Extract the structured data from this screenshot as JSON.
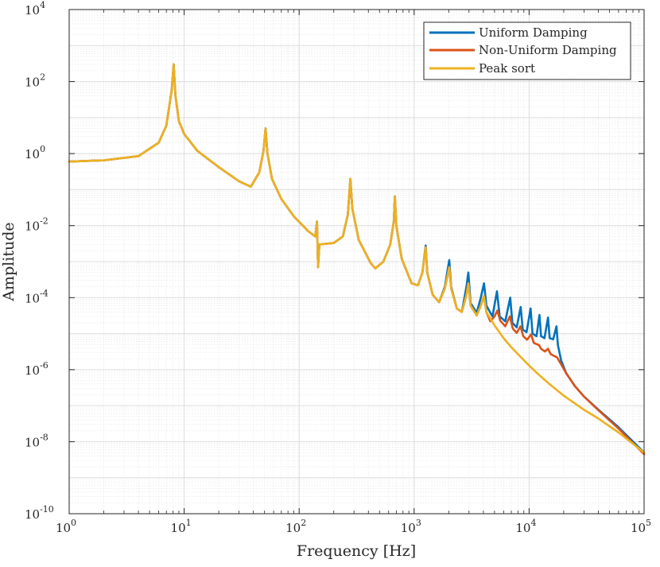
{
  "chart_data": {
    "type": "line",
    "xlabel": "Frequency [Hz]",
    "ylabel": "Amplitude",
    "xscale": "log",
    "yscale": "log",
    "xlim": [
      1,
      100000
    ],
    "ylim": [
      1e-10,
      10000
    ],
    "x_ticks": [
      {
        "base": "10",
        "exp": "0"
      },
      {
        "base": "10",
        "exp": "1"
      },
      {
        "base": "10",
        "exp": "2"
      },
      {
        "base": "10",
        "exp": "3"
      },
      {
        "base": "10",
        "exp": "4"
      },
      {
        "base": "10",
        "exp": "5"
      }
    ],
    "y_ticks": [
      {
        "base": "10",
        "exp": "-10"
      },
      {
        "base": "10",
        "exp": "-8"
      },
      {
        "base": "10",
        "exp": "-6"
      },
      {
        "base": "10",
        "exp": "-4"
      },
      {
        "base": "10",
        "exp": "-2"
      },
      {
        "base": "10",
        "exp": "0"
      },
      {
        "base": "10",
        "exp": "2"
      },
      {
        "base": "10",
        "exp": "4"
      }
    ],
    "grid": true,
    "minor_grid": true,
    "legend_position": "top-right",
    "series": [
      {
        "name": "Uniform Damping",
        "color": "#0072BD",
        "points": [
          [
            1,
            0.6
          ],
          [
            2,
            0.65
          ],
          [
            4,
            0.85
          ],
          [
            6,
            2.0
          ],
          [
            7,
            6
          ],
          [
            7.8,
            60
          ],
          [
            8.1,
            300
          ],
          [
            8.4,
            40
          ],
          [
            9,
            8
          ],
          [
            10,
            3.5
          ],
          [
            13,
            1.2
          ],
          [
            20,
            0.42
          ],
          [
            30,
            0.17
          ],
          [
            38,
            0.12
          ],
          [
            45,
            0.3
          ],
          [
            49,
            1.2
          ],
          [
            51,
            5
          ],
          [
            53,
            1.0
          ],
          [
            58,
            0.2
          ],
          [
            70,
            0.055
          ],
          [
            90,
            0.018
          ],
          [
            120,
            0.007
          ],
          [
            138,
            0.005
          ],
          [
            143,
            0.013
          ],
          [
            146,
            0.0007
          ],
          [
            150,
            0.003
          ],
          [
            200,
            0.0033
          ],
          [
            240,
            0.005
          ],
          [
            265,
            0.02
          ],
          [
            279,
            0.2
          ],
          [
            290,
            0.03
          ],
          [
            330,
            0.004
          ],
          [
            420,
            0.0009
          ],
          [
            460,
            0.00065
          ],
          [
            540,
            0.001
          ],
          [
            620,
            0.003
          ],
          [
            665,
            0.013
          ],
          [
            680,
            0.065
          ],
          [
            700,
            0.01
          ],
          [
            780,
            0.0012
          ],
          [
            950,
            0.00025
          ],
          [
            1080,
            0.00022
          ],
          [
            1180,
            0.0005
          ],
          [
            1260,
            0.0028
          ],
          [
            1300,
            0.0005
          ],
          [
            1450,
            0.00012
          ],
          [
            1650,
            7.5e-05
          ],
          [
            1850,
            0.0002
          ],
          [
            2020,
            0.0011
          ],
          [
            2100,
            0.0002
          ],
          [
            2350,
            5e-05
          ],
          [
            2600,
            4e-05
          ],
          [
            2850,
            0.0002
          ],
          [
            2960,
            0.0005
          ],
          [
            3100,
            7e-05
          ],
          [
            3500,
            3.8e-05
          ],
          [
            3800,
            0.0001
          ],
          [
            4050,
            0.00025
          ],
          [
            4250,
            6e-05
          ],
          [
            4800,
            3e-05
          ],
          [
            5250,
            0.00015
          ],
          [
            5550,
            3e-05
          ],
          [
            6200,
            2.2e-05
          ],
          [
            6850,
            0.0001
          ],
          [
            7150,
            2e-05
          ],
          [
            7800,
            1.5e-05
          ],
          [
            8450,
            5.5e-05
          ],
          [
            8800,
            1.3e-05
          ],
          [
            9500,
            1.1e-05
          ],
          [
            10300,
            5e-05
          ],
          [
            10700,
            1e-05
          ],
          [
            11600,
            8.5e-06
          ],
          [
            12300,
            3.3e-05
          ],
          [
            12700,
            8.5e-06
          ],
          [
            13600,
            7.5e-06
          ],
          [
            14600,
            2.8e-05
          ],
          [
            15100,
            7.5e-06
          ],
          [
            16200,
            7e-06
          ],
          [
            17300,
            1.6e-05
          ],
          [
            17800,
            4.8e-06
          ],
          [
            19000,
            1.8e-06
          ],
          [
            21000,
            8e-07
          ],
          [
            25000,
            3.5e-07
          ],
          [
            30000,
            1.8e-07
          ],
          [
            40000,
            7.8e-08
          ],
          [
            60000,
            2.5e-08
          ],
          [
            100000,
            5e-09
          ]
        ]
      },
      {
        "name": "Non-Uniform Damping",
        "color": "#D95319",
        "points": [
          [
            1,
            0.6
          ],
          [
            2,
            0.65
          ],
          [
            4,
            0.85
          ],
          [
            6,
            2.0
          ],
          [
            7,
            6
          ],
          [
            7.8,
            60
          ],
          [
            8.1,
            300
          ],
          [
            8.4,
            40
          ],
          [
            9,
            8
          ],
          [
            10,
            3.5
          ],
          [
            13,
            1.2
          ],
          [
            20,
            0.42
          ],
          [
            30,
            0.17
          ],
          [
            38,
            0.12
          ],
          [
            45,
            0.3
          ],
          [
            49,
            1.2
          ],
          [
            51,
            5
          ],
          [
            53,
            1.0
          ],
          [
            58,
            0.2
          ],
          [
            70,
            0.055
          ],
          [
            90,
            0.018
          ],
          [
            120,
            0.007
          ],
          [
            138,
            0.005
          ],
          [
            143,
            0.013
          ],
          [
            146,
            0.0007
          ],
          [
            150,
            0.003
          ],
          [
            200,
            0.0033
          ],
          [
            240,
            0.005
          ],
          [
            265,
            0.02
          ],
          [
            279,
            0.2
          ],
          [
            290,
            0.03
          ],
          [
            330,
            0.004
          ],
          [
            420,
            0.0009
          ],
          [
            460,
            0.00065
          ],
          [
            540,
            0.001
          ],
          [
            620,
            0.003
          ],
          [
            665,
            0.013
          ],
          [
            680,
            0.065
          ],
          [
            700,
            0.01
          ],
          [
            780,
            0.0012
          ],
          [
            950,
            0.00025
          ],
          [
            1080,
            0.00022
          ],
          [
            1180,
            0.0005
          ],
          [
            1260,
            0.0025
          ],
          [
            1300,
            0.0005
          ],
          [
            1450,
            0.00012
          ],
          [
            1650,
            7.5e-05
          ],
          [
            1850,
            0.00018
          ],
          [
            2020,
            0.0007
          ],
          [
            2100,
            0.00018
          ],
          [
            2350,
            5e-05
          ],
          [
            2600,
            4e-05
          ],
          [
            2850,
            0.00012
          ],
          [
            2960,
            0.00025
          ],
          [
            3100,
            6e-05
          ],
          [
            3500,
            3.2e-05
          ],
          [
            3800,
            6e-05
          ],
          [
            4050,
            0.00011
          ],
          [
            4250,
            4e-05
          ],
          [
            4600,
            2.2e-05
          ],
          [
            5000,
            3e-05
          ],
          [
            5300,
            4.4e-05
          ],
          [
            5600,
            2.3e-05
          ],
          [
            6200,
            1.6e-05
          ],
          [
            6800,
            3e-05
          ],
          [
            7200,
            1.4e-05
          ],
          [
            7800,
            1.05e-05
          ],
          [
            8400,
            1.6e-05
          ],
          [
            8900,
            8.5e-06
          ],
          [
            9600,
            6.8e-06
          ],
          [
            10400,
            9.5e-06
          ],
          [
            11000,
            5.5e-06
          ],
          [
            12200,
            4.8e-06
          ],
          [
            12700,
            3.8e-06
          ],
          [
            13700,
            3.2e-06
          ],
          [
            14600,
            3.8e-06
          ],
          [
            15400,
            2.7e-06
          ],
          [
            16500,
            2.4e-06
          ],
          [
            17500,
            2.2e-06
          ],
          [
            19000,
            1.4e-06
          ],
          [
            21000,
            8e-07
          ],
          [
            25000,
            3.5e-07
          ],
          [
            30000,
            1.8e-07
          ],
          [
            40000,
            7.5e-08
          ],
          [
            60000,
            2.3e-08
          ],
          [
            100000,
            4.5e-09
          ]
        ]
      },
      {
        "name": "Peak sort",
        "color": "#EDB120",
        "points": [
          [
            1,
            0.6
          ],
          [
            2,
            0.65
          ],
          [
            4,
            0.85
          ],
          [
            6,
            2.0
          ],
          [
            7,
            6
          ],
          [
            7.8,
            60
          ],
          [
            8.1,
            300
          ],
          [
            8.4,
            40
          ],
          [
            9,
            8
          ],
          [
            10,
            3.5
          ],
          [
            13,
            1.2
          ],
          [
            20,
            0.42
          ],
          [
            30,
            0.17
          ],
          [
            38,
            0.12
          ],
          [
            45,
            0.3
          ],
          [
            49,
            1.2
          ],
          [
            51,
            5
          ],
          [
            53,
            1.0
          ],
          [
            58,
            0.2
          ],
          [
            70,
            0.055
          ],
          [
            90,
            0.018
          ],
          [
            120,
            0.007
          ],
          [
            138,
            0.005
          ],
          [
            143,
            0.013
          ],
          [
            146,
            0.0007
          ],
          [
            150,
            0.003
          ],
          [
            200,
            0.0033
          ],
          [
            240,
            0.005
          ],
          [
            265,
            0.02
          ],
          [
            279,
            0.2
          ],
          [
            290,
            0.03
          ],
          [
            330,
            0.004
          ],
          [
            420,
            0.0009
          ],
          [
            460,
            0.00065
          ],
          [
            540,
            0.001
          ],
          [
            620,
            0.003
          ],
          [
            665,
            0.013
          ],
          [
            680,
            0.065
          ],
          [
            700,
            0.01
          ],
          [
            780,
            0.0012
          ],
          [
            950,
            0.00025
          ],
          [
            1080,
            0.00022
          ],
          [
            1180,
            0.0005
          ],
          [
            1260,
            0.0025
          ],
          [
            1300,
            0.0005
          ],
          [
            1450,
            0.00012
          ],
          [
            1650,
            7.5e-05
          ],
          [
            1850,
            0.00018
          ],
          [
            2020,
            0.0007
          ],
          [
            2100,
            0.00018
          ],
          [
            2350,
            5e-05
          ],
          [
            2600,
            4e-05
          ],
          [
            2850,
            0.00012
          ],
          [
            2960,
            0.00025
          ],
          [
            3100,
            6e-05
          ],
          [
            3500,
            3.2e-05
          ],
          [
            3800,
            6e-05
          ],
          [
            4050,
            0.00011
          ],
          [
            4250,
            4e-05
          ],
          [
            5000,
            1.7e-05
          ],
          [
            6000,
            7.5e-06
          ],
          [
            7000,
            4.2e-06
          ],
          [
            8000,
            2.7e-06
          ],
          [
            10000,
            1.3e-06
          ],
          [
            12000,
            7.5e-07
          ],
          [
            15000,
            4e-07
          ],
          [
            20000,
            1.9e-07
          ],
          [
            30000,
            7.7e-08
          ],
          [
            40000,
            4.4e-08
          ],
          [
            60000,
            1.8e-08
          ],
          [
            100000,
            5e-09
          ]
        ]
      }
    ]
  }
}
